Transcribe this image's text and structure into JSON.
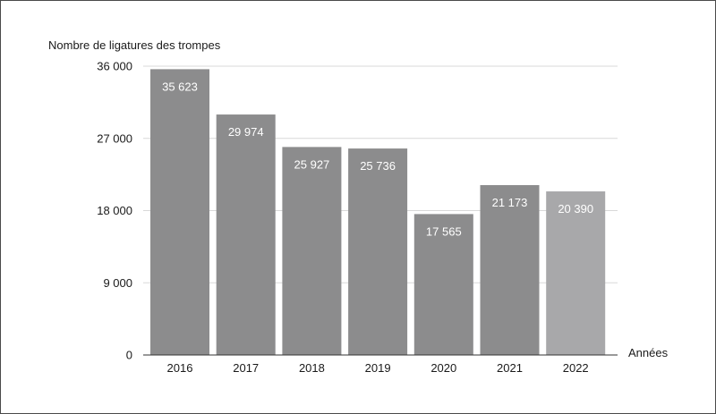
{
  "chart_data": {
    "type": "bar",
    "title": "",
    "ylabel": "Nombre de ligatures des trompes",
    "xlabel": "Années",
    "categories": [
      "2016",
      "2017",
      "2018",
      "2019",
      "2020",
      "2021",
      "2022"
    ],
    "values": [
      35623,
      29974,
      25927,
      25736,
      17565,
      21173,
      20390
    ],
    "value_labels": [
      "35 623",
      "29 974",
      "25 927",
      "25 736",
      "17 565",
      "21 173",
      "20 390"
    ],
    "ylim": [
      0,
      36000
    ],
    "yticks": [
      0,
      9000,
      18000,
      27000,
      36000
    ],
    "ytick_labels": [
      "0",
      "9 000",
      "18 000",
      "27 000",
      "36 000"
    ],
    "grid": true,
    "legend": "none",
    "colors": {
      "bar": "#8c8c8d",
      "bar_highlight": "#a8a8aa",
      "grid": "#d9d9d9",
      "axis": "#333333"
    },
    "highlight_index": 6
  }
}
